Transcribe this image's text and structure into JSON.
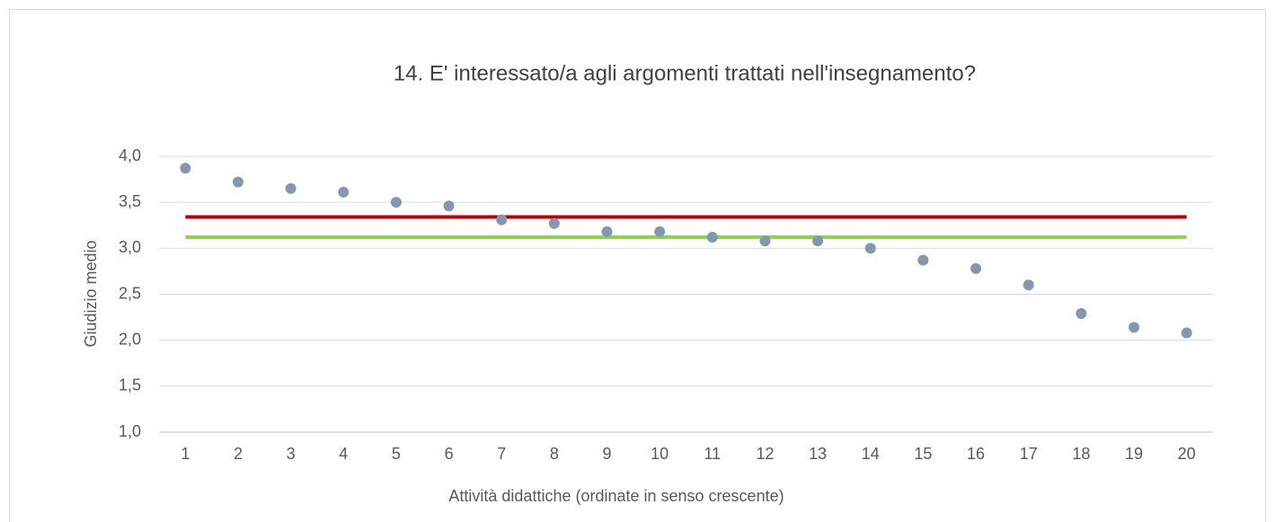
{
  "chart_data": {
    "type": "scatter",
    "title": "14. E' interessato/a agli argomenti trattati nell'insegnamento?",
    "x_label": "Attività didattiche (ordinate in senso crescente)",
    "y_label": "Giudizio medio",
    "categories": [
      "1",
      "2",
      "3",
      "4",
      "5",
      "6",
      "7",
      "8",
      "9",
      "10",
      "11",
      "12",
      "13",
      "14",
      "15",
      "16",
      "17",
      "18",
      "19",
      "20"
    ],
    "series": [
      {
        "mode": "markers",
        "color": "#8497b0",
        "values": [
          3.87,
          3.72,
          3.65,
          3.61,
          3.5,
          3.46,
          3.31,
          3.27,
          3.18,
          3.18,
          3.12,
          3.08,
          3.08,
          3.0,
          2.87,
          2.78,
          2.6,
          2.29,
          2.14,
          2.08
        ]
      },
      {
        "mode": "line",
        "color": "#c00000",
        "values": [
          3.34,
          3.34,
          3.34,
          3.34,
          3.34,
          3.34,
          3.34,
          3.34,
          3.34,
          3.34,
          3.34,
          3.34,
          3.34,
          3.34,
          3.34,
          3.34,
          3.34,
          3.34,
          3.34,
          3.34
        ]
      },
      {
        "mode": "line",
        "color": "#92d050",
        "values": [
          3.12,
          3.12,
          3.12,
          3.12,
          3.12,
          3.12,
          3.12,
          3.12,
          3.12,
          3.12,
          3.12,
          3.12,
          3.12,
          3.12,
          3.12,
          3.12,
          3.12,
          3.12,
          3.12,
          3.12
        ]
      }
    ],
    "ylim": [
      1,
      4
    ],
    "yticks": [
      {
        "value": 1,
        "label": "1,0"
      },
      {
        "value": 1.5,
        "label": "1,5"
      },
      {
        "value": 2,
        "label": "2,0"
      },
      {
        "value": 2.5,
        "label": "2,5"
      },
      {
        "value": 3,
        "label": "3,0"
      },
      {
        "value": 3.5,
        "label": "3,5"
      },
      {
        "value": 4,
        "label": "4,0"
      }
    ],
    "grid": true
  }
}
